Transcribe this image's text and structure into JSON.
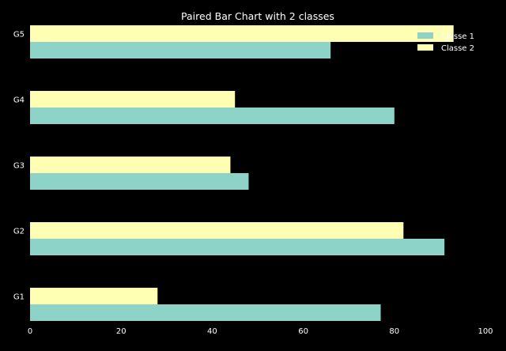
{
  "chart_data": {
    "type": "bar",
    "orientation": "horizontal",
    "title": "Paired Bar Chart with 2 classes",
    "categories": [
      "G1",
      "G2",
      "G3",
      "G4",
      "G5"
    ],
    "series": [
      {
        "name": "Classe 1",
        "color": "#8dd3c7",
        "values": [
          77,
          91,
          48,
          80,
          66
        ]
      },
      {
        "name": "Classe 2",
        "color": "#ffffb3",
        "values": [
          28,
          82,
          44,
          45,
          93
        ]
      }
    ],
    "xlim": [
      0,
      100
    ],
    "xticks": [
      0,
      20,
      40,
      60,
      80,
      100
    ],
    "grid": false,
    "legend_position": "top-right",
    "background": "#000000",
    "text_color": "#ffffff"
  }
}
